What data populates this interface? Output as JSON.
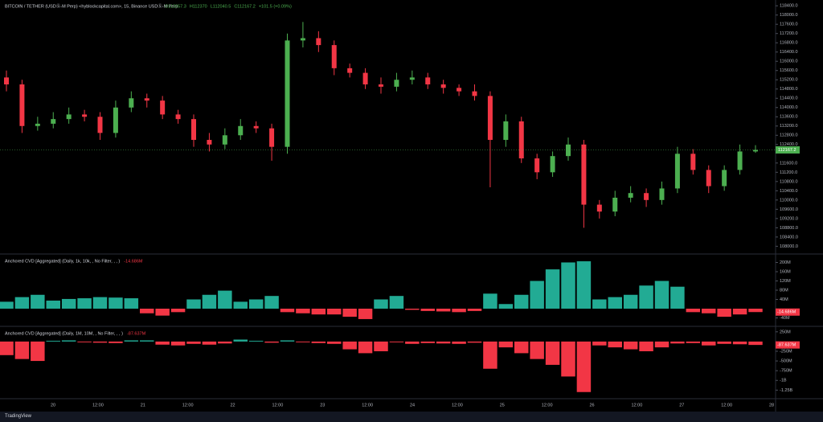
{
  "chart_data": [
    {
      "type": "candlestick",
      "title": "BITCOIN / TETHER (USDⓈ-M Perp) <hyblockcapital.com>, 15, Binance USDⓈ-M Perp",
      "ohlc_readout": [
        "O112057.3",
        "H112370",
        "L112040.5",
        "C112167.2",
        "+101.5 (+0.09%)"
      ],
      "up_color": "#4caf50",
      "down_color": "#f23645",
      "open": [
        115300,
        115000,
        113200,
        113300,
        113500,
        113700,
        113600,
        112900,
        114000,
        114400,
        114300,
        113700,
        113500,
        112600,
        112400,
        112800,
        113200,
        113100,
        112300,
        116900,
        117000,
        116700,
        115700,
        115500,
        115000,
        114900,
        115200,
        115300,
        115000,
        114850,
        114700,
        114500,
        112600,
        113400,
        111800,
        111200,
        111900,
        112400,
        109800,
        109500,
        110100,
        110300,
        110000,
        110500,
        112000,
        111300,
        110600,
        111300,
        112100
      ],
      "high": [
        115600,
        115200,
        113600,
        113800,
        114000,
        113900,
        113800,
        114300,
        114700,
        114600,
        114500,
        113900,
        113700,
        112900,
        113100,
        113500,
        113400,
        113300,
        117200,
        117700,
        117300,
        116900,
        115900,
        115700,
        115300,
        115500,
        115600,
        115500,
        115200,
        115000,
        115000,
        114700,
        113700,
        113600,
        112000,
        112100,
        112700,
        112600,
        110000,
        110400,
        110600,
        110500,
        110800,
        112300,
        112200,
        111500,
        111500,
        112400,
        112370
      ],
      "low": [
        114700,
        112900,
        113000,
        113100,
        113300,
        113400,
        112600,
        112700,
        113800,
        114000,
        113500,
        113300,
        112300,
        112100,
        112200,
        112600,
        112900,
        111700,
        112000,
        116600,
        116400,
        115400,
        115300,
        114800,
        114600,
        114700,
        115000,
        114800,
        114600,
        114500,
        114300,
        110550,
        112300,
        111600,
        110900,
        111000,
        111700,
        108800,
        109200,
        109300,
        109900,
        109700,
        109800,
        110300,
        111100,
        110300,
        110400,
        111100,
        112040.5
      ],
      "close": [
        115000,
        113200,
        113300,
        113500,
        113700,
        113600,
        112900,
        114000,
        114400,
        114300,
        113700,
        113500,
        112600,
        112400,
        112800,
        113200,
        113100,
        112300,
        116900,
        117000,
        116700,
        115700,
        115500,
        115000,
        114900,
        115200,
        115300,
        115000,
        114850,
        114700,
        114500,
        112600,
        113400,
        111800,
        111200,
        111900,
        112400,
        109800,
        109500,
        110100,
        110300,
        110000,
        110500,
        112000,
        111300,
        110600,
        111300,
        112100,
        112167.2
      ],
      "ylim": [
        107700,
        118650
      ],
      "yticks": [
        {
          "value": 118400,
          "label": "118400.0"
        },
        {
          "value": 118000,
          "label": "118000.0"
        },
        {
          "value": 117600,
          "label": "117600.0"
        },
        {
          "value": 117200,
          "label": "117200.0"
        },
        {
          "value": 116800,
          "label": "116800.0"
        },
        {
          "value": 116400,
          "label": "116400.0"
        },
        {
          "value": 116000,
          "label": "116000.0"
        },
        {
          "value": 115600,
          "label": "115600.0"
        },
        {
          "value": 115200,
          "label": "115200.0"
        },
        {
          "value": 114800,
          "label": "114800.0"
        },
        {
          "value": 114400,
          "label": "114400.0"
        },
        {
          "value": 114000,
          "label": "114000.0"
        },
        {
          "value": 113600,
          "label": "113600.0"
        },
        {
          "value": 113200,
          "label": "113200.0"
        },
        {
          "value": 112800,
          "label": "112800.0"
        },
        {
          "value": 112400,
          "label": "112400.0"
        },
        {
          "value": 111600,
          "label": "111600.0"
        },
        {
          "value": 111200,
          "label": "111200.0"
        },
        {
          "value": 110800,
          "label": "110800.0"
        },
        {
          "value": 110400,
          "label": "110400.0"
        },
        {
          "value": 110000,
          "label": "110000.0"
        },
        {
          "value": 109600,
          "label": "109600.0"
        },
        {
          "value": 109200,
          "label": "109200.0"
        },
        {
          "value": 108800,
          "label": "108800.0"
        },
        {
          "value": 108400,
          "label": "108400.0"
        },
        {
          "value": 108000,
          "label": "108000.0"
        }
      ],
      "x_labels": [
        "20",
        "12:00",
        "21",
        "12:00",
        "22",
        "12:00",
        "23",
        "12:00",
        "24",
        "12:00",
        "25",
        "12:00",
        "26",
        "12:00",
        "27",
        "12:00",
        "28"
      ],
      "grid": false
    },
    {
      "type": "bar",
      "title": "Anchored CVD [Aggregated] (Daily, 1k, 10k, , No Filter, , , )",
      "up_color": "#22ab94",
      "down_color": "#f23645",
      "values": [
        30,
        50,
        60,
        35,
        42,
        45,
        50,
        48,
        45,
        -20,
        -30,
        -15,
        40,
        60,
        78,
        30,
        40,
        55,
        -15,
        -20,
        -25,
        -25,
        -35,
        -45,
        40,
        55,
        -5,
        -10,
        -12,
        -15,
        -10,
        65,
        20,
        60,
        120,
        170,
        200,
        205,
        40,
        50,
        60,
        100,
        120,
        95,
        -15,
        -20,
        -35,
        -25,
        -14.686
      ],
      "value_labels": [
        null,
        null,
        null,
        null,
        null,
        null,
        null,
        null,
        null,
        null,
        null,
        null,
        null,
        null,
        null,
        null,
        null,
        null,
        null,
        null,
        null,
        null,
        null,
        null,
        null,
        null,
        null,
        null,
        null,
        null,
        null,
        null,
        null,
        null,
        null,
        null,
        null,
        null,
        null,
        null,
        null,
        null,
        null,
        null,
        null,
        null,
        null,
        null,
        "-14.686M"
      ],
      "ylim": [
        -73,
        233
      ],
      "yticks": [
        {
          "value": 200,
          "label": "200M"
        },
        {
          "value": 160,
          "label": "160M"
        },
        {
          "value": 120,
          "label": "120M"
        },
        {
          "value": 80,
          "label": "80M"
        },
        {
          "value": 40,
          "label": "40M"
        },
        {
          "value": -40,
          "label": "-40M"
        }
      ],
      "grid": false
    },
    {
      "type": "bar",
      "title": "Anchored CVD [Aggregated] (Daily, 1M, 10M, , No Filter, , , )",
      "up_color": "#22ab94",
      "down_color": "#f23645",
      "values": [
        -350,
        -450,
        -500,
        20,
        30,
        -20,
        -30,
        -40,
        30,
        30,
        -80,
        -100,
        -60,
        -80,
        -50,
        50,
        20,
        -30,
        30,
        -20,
        -40,
        -60,
        -200,
        -300,
        -250,
        -20,
        -60,
        -40,
        -50,
        -60,
        -30,
        -700,
        -150,
        -300,
        -450,
        -600,
        -900,
        -1300,
        -100,
        -150,
        -200,
        -250,
        -150,
        -50,
        -40,
        -100,
        -60,
        -70,
        -87.637
      ],
      "value_labels": [
        null,
        null,
        null,
        null,
        null,
        null,
        null,
        null,
        null,
        null,
        null,
        null,
        null,
        null,
        null,
        null,
        null,
        null,
        null,
        null,
        null,
        null,
        null,
        null,
        null,
        null,
        null,
        null,
        null,
        null,
        null,
        null,
        null,
        null,
        null,
        null,
        null,
        null,
        null,
        null,
        null,
        null,
        null,
        null,
        null,
        null,
        null,
        null,
        "-87.637M"
      ],
      "ylim": [
        -1450,
        370
      ],
      "yticks": [
        {
          "value": 250,
          "label": "250M"
        },
        {
          "value": -250,
          "label": "-250M"
        },
        {
          "value": -500,
          "label": "-500M"
        },
        {
          "value": -750,
          "label": "-750M"
        },
        {
          "value": -1000,
          "label": "-1B"
        },
        {
          "value": -1250,
          "label": "-1.25B"
        }
      ],
      "grid": false
    }
  ],
  "brand": "TradingView"
}
